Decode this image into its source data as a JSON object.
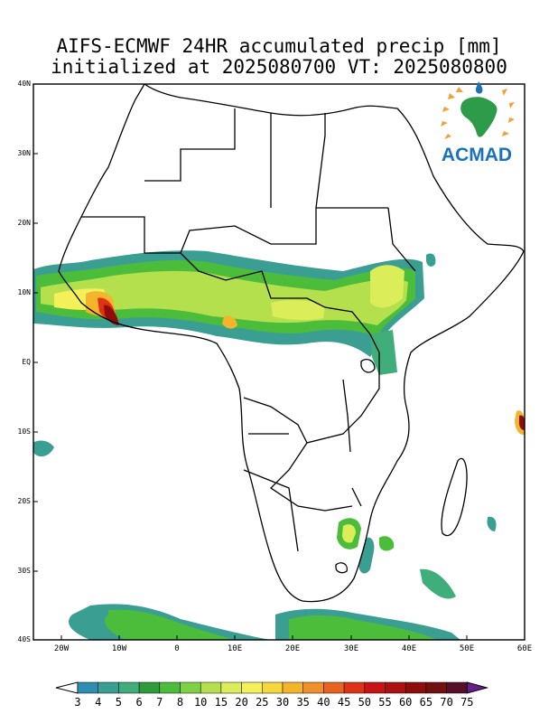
{
  "title": {
    "line1": "AIFS-ECMWF 24HR accumulated precip [mm]",
    "line2": "initialized at 2025080700 VT: 2025080800"
  },
  "logo": {
    "text": "ACMAD",
    "icon": "africa-logo-icon"
  },
  "axes": {
    "lat_labels": [
      "40N",
      "30N",
      "20N",
      "10N",
      "EQ",
      "10S",
      "20S",
      "30S",
      "40S"
    ],
    "lon_labels": [
      "20W",
      "10W",
      "0",
      "10E",
      "20E",
      "30E",
      "40E",
      "50E",
      "60E"
    ]
  },
  "colorbar": {
    "labels": [
      "3",
      "4",
      "5",
      "6",
      "7",
      "8",
      "10",
      "15",
      "20",
      "25",
      "30",
      "35",
      "40",
      "45",
      "50",
      "55",
      "60",
      "65",
      "70",
      "75"
    ],
    "colors": [
      "#2f8db0",
      "#3a9e93",
      "#3fae7a",
      "#2d9b3a",
      "#4cbd3a",
      "#7fd145",
      "#b4e04d",
      "#dced5a",
      "#f3f05a",
      "#f5d93c",
      "#f4b52d",
      "#f0902a",
      "#e8631f",
      "#de3216",
      "#c81414",
      "#ad1010",
      "#8e0c0c",
      "#721010",
      "#58102a",
      "#6a1e8c"
    ]
  }
}
